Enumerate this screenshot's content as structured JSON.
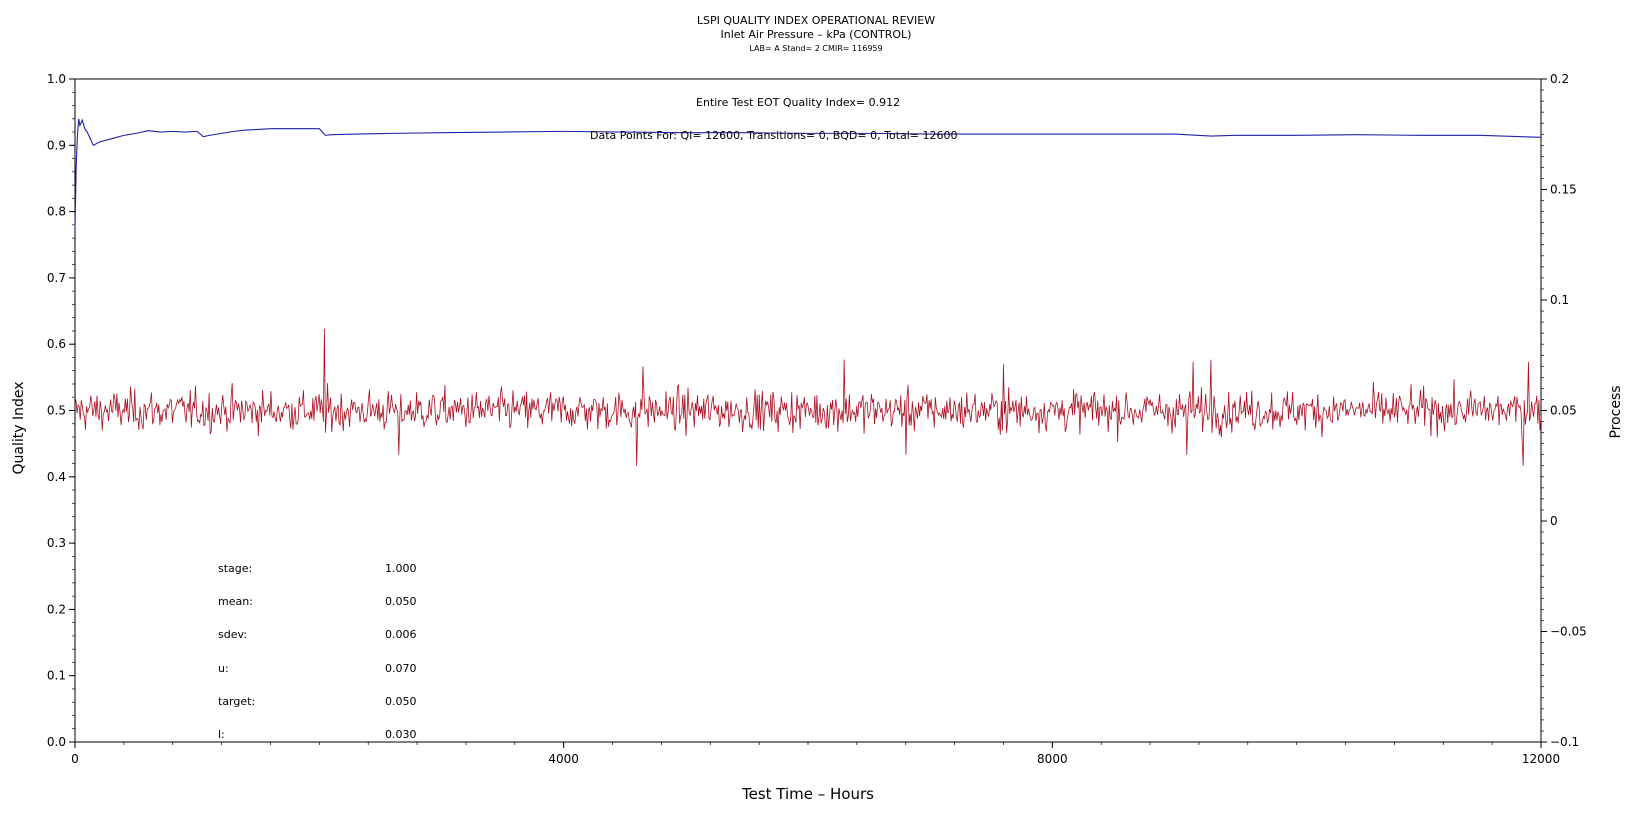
{
  "header": {
    "title": "LSPI QUALITY INDEX OPERATIONAL REVIEW",
    "subtitle": "Inlet Air Pressure – kPa (CONTROL)",
    "info": "LAB= A Stand= 2 CMIR= 116959"
  },
  "annotations": {
    "eot_quality_index": "Entire Test EOT Quality Index=   0.912",
    "data_points": "Data Points For: QI= 12600, Transitions=    0, BQD=    0, Total= 12600"
  },
  "stats": [
    {
      "label": "stage:",
      "value": "1.000"
    },
    {
      "label": "mean:",
      "value": "0.050"
    },
    {
      "label": "sdev:",
      "value": "0.006"
    },
    {
      "label": "u:",
      "value": "0.070"
    },
    {
      "label": "target:",
      "value": "0.050"
    },
    {
      "label": "l:",
      "value": "0.030"
    }
  ],
  "colors": {
    "quality_index": "#2222aa",
    "process": "#aa1122"
  },
  "chart_data": {
    "type": "line",
    "title": "LSPI QUALITY INDEX OPERATIONAL REVIEW",
    "xlabel": "Test Time – Hours",
    "ylabel_left": "Quality Index",
    "ylabel_right": "Process",
    "xlim": [
      0,
      12000
    ],
    "ylim_left": [
      0.0,
      1.0
    ],
    "ylim_right": [
      -0.1,
      0.2
    ],
    "x_ticks": [
      "0",
      "4000",
      "8000",
      "12000"
    ],
    "y_ticks_left": [
      "0.0",
      "0.1",
      "0.2",
      "0.3",
      "0.4",
      "0.5",
      "0.6",
      "0.7",
      "0.8",
      "0.9",
      "1.0"
    ],
    "y_ticks_right": [
      "−0.1",
      "−0.05",
      "0",
      "0.05",
      "0.1",
      "0.15",
      "0.2"
    ],
    "grid": false,
    "series": [
      {
        "axis": "left",
        "x": [
          0,
          10,
          20,
          30,
          40,
          60,
          80,
          100,
          150,
          200,
          300,
          400,
          500,
          600,
          700,
          800,
          900,
          1000,
          1050,
          1100,
          1200,
          1300,
          1400,
          1500,
          1600,
          1700,
          1800,
          1900,
          2000,
          2050,
          2100,
          2300,
          2600,
          3000,
          3500,
          4000,
          4500,
          5000,
          5500,
          6000,
          6500,
          7000,
          7500,
          8000,
          8500,
          9000,
          9300,
          9500,
          10000,
          10500,
          11000,
          11500,
          12000
        ],
        "y": [
          0.775,
          0.87,
          0.915,
          0.94,
          0.93,
          0.938,
          0.925,
          0.92,
          0.9,
          0.905,
          0.91,
          0.915,
          0.918,
          0.922,
          0.92,
          0.921,
          0.92,
          0.921,
          0.913,
          0.915,
          0.918,
          0.921,
          0.923,
          0.924,
          0.925,
          0.925,
          0.925,
          0.925,
          0.925,
          0.915,
          0.916,
          0.917,
          0.918,
          0.919,
          0.92,
          0.921,
          0.92,
          0.919,
          0.919,
          0.918,
          0.918,
          0.917,
          0.917,
          0.917,
          0.917,
          0.917,
          0.914,
          0.915,
          0.915,
          0.916,
          0.915,
          0.915,
          0.912
        ]
      },
      {
        "axis": "right",
        "x_start": 0,
        "x_end": 12000,
        "points": 1400,
        "mean": 0.05,
        "sdev": 0.006,
        "spikes": [
          {
            "x": 2040,
            "y": 0.087
          },
          {
            "x": 2050,
            "y": 0.04
          },
          {
            "x": 2650,
            "y": 0.03
          },
          {
            "x": 4600,
            "y": 0.025
          },
          {
            "x": 4650,
            "y": 0.07
          },
          {
            "x": 6300,
            "y": 0.073
          },
          {
            "x": 6800,
            "y": 0.03
          },
          {
            "x": 7600,
            "y": 0.071
          },
          {
            "x": 9150,
            "y": 0.072
          },
          {
            "x": 9100,
            "y": 0.03
          },
          {
            "x": 9300,
            "y": 0.073
          },
          {
            "x": 11850,
            "y": 0.025
          },
          {
            "x": 11900,
            "y": 0.072
          }
        ]
      }
    ]
  }
}
